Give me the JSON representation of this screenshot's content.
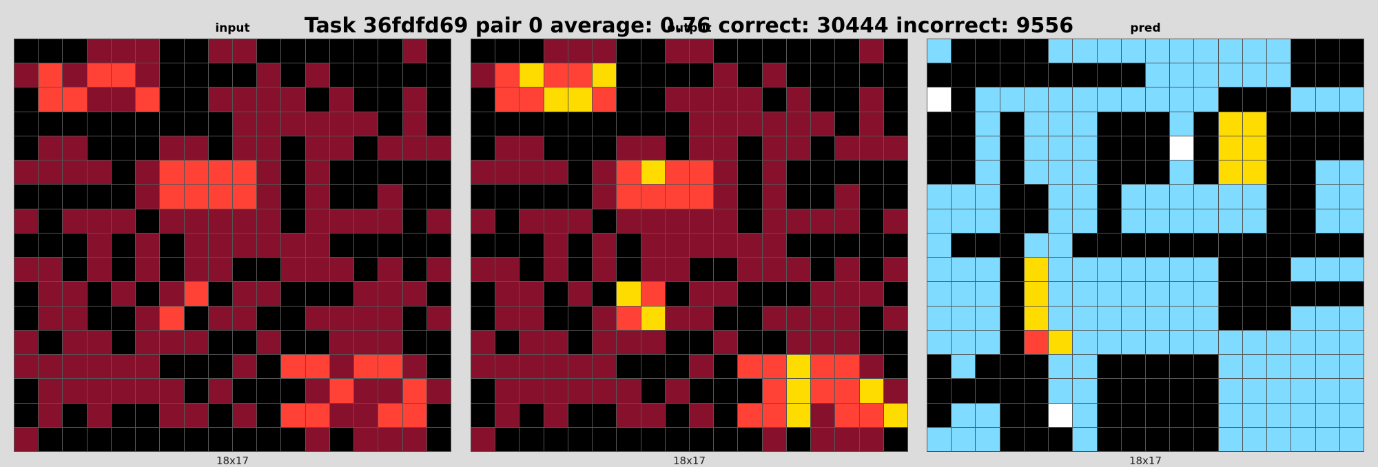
{
  "title": "Task 36fdfd69 pair 0 average: 0.76 correct: 30444 incorrect: 9556",
  "colors": {
    "0": "#000000",
    "1": "#87102c",
    "2": "#ff4136",
    "3": "#ffdc00",
    "4": "#7fdbff",
    "5": "#ffffff"
  },
  "panels": [
    {
      "label": "input",
      "dims": "18x17",
      "grid": [
        "000111001100000010",
        "121221000010100000",
        "022112001111010010",
        "000000000111111010",
        "011000110110110111",
        "111101222210100000",
        "000001222210100100",
        "101110111110111101",
        "000101011111100000",
        "110101011001110101",
        "011010120110001110",
        "011001201100111101",
        "101101110010011100",
        "111111000102212210",
        "011111101000121121",
        "010100110102211220",
        "100000000000101110"
      ]
    },
    {
      "label": "output",
      "dims": "18x17",
      "grid": [
        "000111001100000010",
        "123223000010100000",
        "022332001111010010",
        "000000000111111010",
        "011000110110110111",
        "111101232210100000",
        "000001222210100100",
        "101110111110111101",
        "000101011111100000",
        "110101011001110101",
        "011010320110001110",
        "011001231100111101",
        "101101110010011100",
        "111111000102232210",
        "011111101000232231",
        "010100110102231223",
        "100000000000101110"
      ]
    },
    {
      "label": "pred",
      "dims": "18x17",
      "grid": [
        "400004444444444000",
        "000000000444444000",
        "504444444444000444",
        "004044400040330000",
        "004044400050330000",
        "004044400040330044",
        "444004404444440044",
        "444004404444440044",
        "400044000000000000",
        "444034444444000444",
        "444034444444000000",
        "444034444444000444",
        "444023444444444444",
        "040004400000444444",
        "000004400000444444",
        "044005400000444444",
        "444000400000444444"
      ]
    }
  ]
}
